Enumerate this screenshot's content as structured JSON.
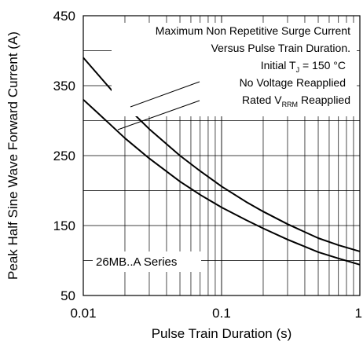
{
  "chart_data": {
    "type": "line",
    "title": "",
    "xlabel": "Pulse Train Duration (s)",
    "ylabel": "Peak Half Sine Wave Forward Current (A)",
    "xscale": "log",
    "xlim": [
      0.01,
      1
    ],
    "ylim": [
      50,
      450
    ],
    "x_ticks": [
      {
        "value": 0.01,
        "label": "0.01"
      },
      {
        "value": 0.1,
        "label": "0.1"
      },
      {
        "value": 1,
        "label": "1"
      }
    ],
    "y_ticks": [
      {
        "value": 50,
        "label": "50"
      },
      {
        "value": 150,
        "label": "150"
      },
      {
        "value": 250,
        "label": "250"
      },
      {
        "value": 350,
        "label": "350"
      },
      {
        "value": 450,
        "label": "450"
      }
    ],
    "grid": true,
    "annotations": {
      "line1": "Maximum Non Repetitive Surge Current",
      "line2": "Versus Pulse Train Duration.",
      "line3_main": "Initial T",
      "line3_sub": "J",
      "line3_rest": " = 150 °C",
      "line4": "No Voltage Reapplied",
      "line5_main": "Rated V",
      "line5_sub": "RRM",
      "line5_rest": " Reapplied"
    },
    "series_label": "26MB..A Series",
    "series": [
      {
        "x": [
          0.01,
          0.015,
          0.02,
          0.03,
          0.05,
          0.07,
          0.1,
          0.15,
          0.2,
          0.3,
          0.5,
          0.7,
          1
        ],
        "y": [
          390,
          350,
          322,
          288,
          250,
          228,
          206,
          184,
          170,
          152,
          132,
          122,
          113
        ]
      },
      {
        "x": [
          0.01,
          0.015,
          0.02,
          0.03,
          0.05,
          0.07,
          0.1,
          0.15,
          0.2,
          0.3,
          0.5,
          0.7,
          1
        ],
        "y": [
          330,
          298,
          275,
          246,
          213,
          194,
          176,
          158,
          146,
          130,
          112,
          103,
          94
        ]
      }
    ]
  }
}
